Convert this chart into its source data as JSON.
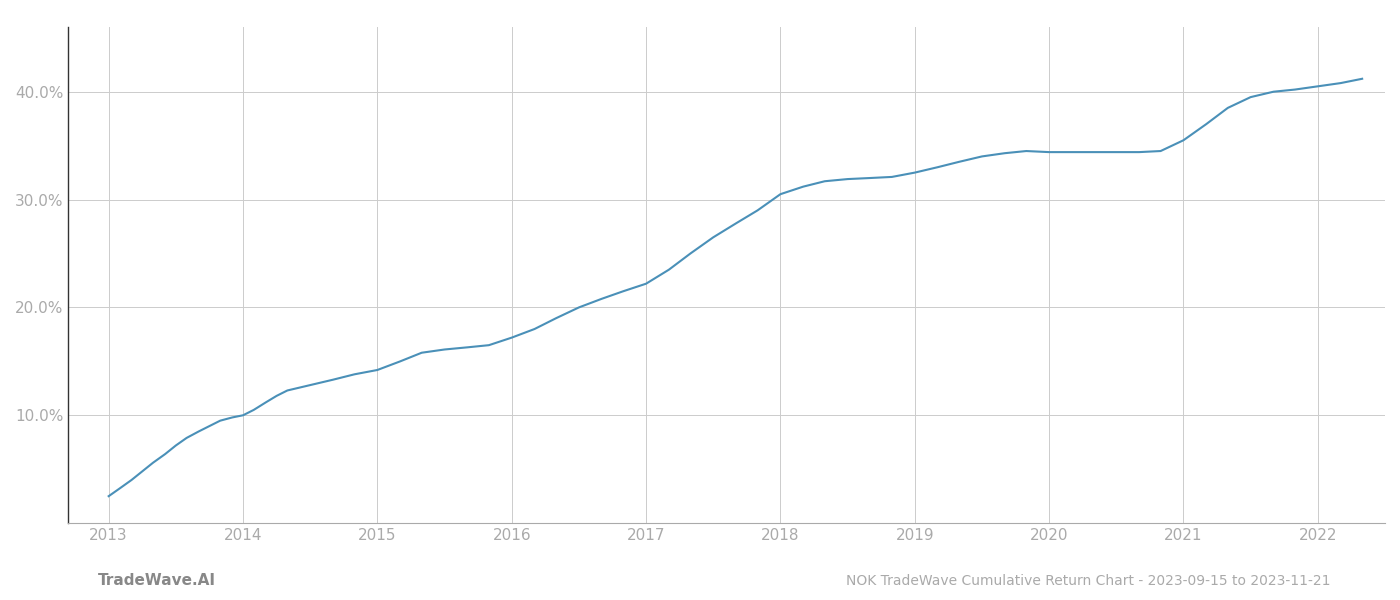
{
  "title": "NOK TradeWave Cumulative Return Chart - 2023-09-15 to 2023-11-21",
  "watermark": "TradeWave.AI",
  "line_color": "#4a90b8",
  "background_color": "#ffffff",
  "grid_color": "#cccccc",
  "x_values": [
    2013.0,
    2013.08,
    2013.17,
    2013.25,
    2013.33,
    2013.42,
    2013.5,
    2013.58,
    2013.67,
    2013.75,
    2013.83,
    2013.92,
    2014.0,
    2014.08,
    2014.17,
    2014.25,
    2014.33,
    2014.5,
    2014.67,
    2014.83,
    2015.0,
    2015.17,
    2015.33,
    2015.5,
    2015.67,
    2015.83,
    2016.0,
    2016.17,
    2016.33,
    2016.5,
    2016.67,
    2016.83,
    2017.0,
    2017.17,
    2017.33,
    2017.5,
    2017.67,
    2017.83,
    2018.0,
    2018.17,
    2018.33,
    2018.5,
    2018.67,
    2018.83,
    2019.0,
    2019.17,
    2019.33,
    2019.5,
    2019.67,
    2019.83,
    2020.0,
    2020.17,
    2020.33,
    2020.5,
    2020.67,
    2020.83,
    2021.0,
    2021.17,
    2021.33,
    2021.5,
    2021.67,
    2021.83,
    2022.0,
    2022.17,
    2022.33
  ],
  "y_values": [
    2.5,
    3.2,
    4.0,
    4.8,
    5.6,
    6.4,
    7.2,
    7.9,
    8.5,
    9.0,
    9.5,
    9.8,
    10.0,
    10.5,
    11.2,
    11.8,
    12.3,
    12.8,
    13.3,
    13.8,
    14.2,
    15.0,
    15.8,
    16.1,
    16.3,
    16.5,
    17.2,
    18.0,
    19.0,
    20.0,
    20.8,
    21.5,
    22.2,
    23.5,
    25.0,
    26.5,
    27.8,
    29.0,
    30.5,
    31.2,
    31.7,
    31.9,
    32.0,
    32.1,
    32.5,
    33.0,
    33.5,
    34.0,
    34.3,
    34.5,
    34.4,
    34.4,
    34.4,
    34.4,
    34.4,
    34.5,
    35.5,
    37.0,
    38.5,
    39.5,
    40.0,
    40.2,
    40.5,
    40.8,
    41.2
  ],
  "xlim": [
    2012.7,
    2022.5
  ],
  "ylim": [
    0,
    46
  ],
  "yticks": [
    10.0,
    20.0,
    30.0,
    40.0
  ],
  "xticks": [
    2013,
    2014,
    2015,
    2016,
    2017,
    2018,
    2019,
    2020,
    2021,
    2022
  ],
  "line_width": 1.5,
  "title_fontsize": 10,
  "tick_fontsize": 11,
  "watermark_fontsize": 11,
  "spine_color": "#aaaaaa",
  "left_spine_color": "#333333"
}
